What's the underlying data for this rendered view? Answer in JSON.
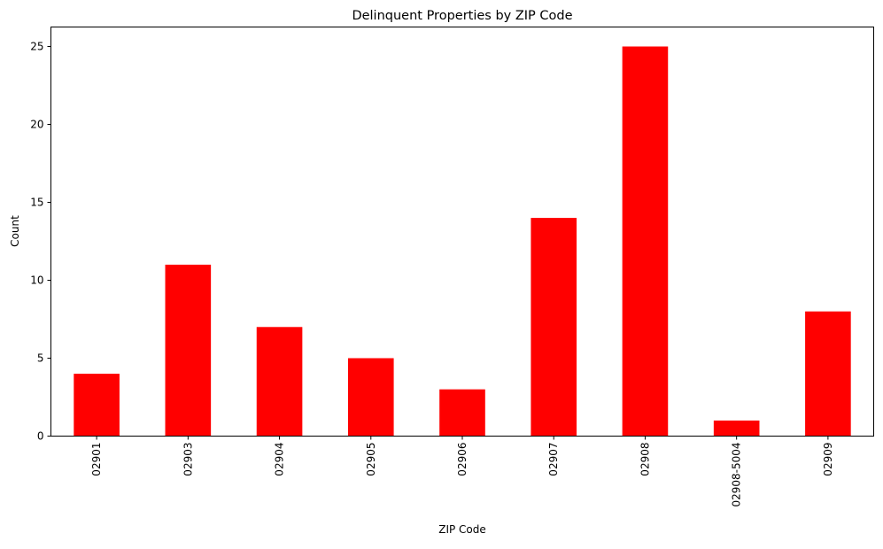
{
  "chart_data": {
    "type": "bar",
    "title": "Delinquent Properties by ZIP Code",
    "xlabel": "ZIP Code",
    "ylabel": "Count",
    "categories": [
      "02901",
      "02903",
      "02904",
      "02905",
      "02906",
      "02907",
      "02908",
      "02908-5004",
      "02909"
    ],
    "values": [
      4,
      11,
      7,
      5,
      3,
      14,
      25,
      1,
      8
    ],
    "ylim": [
      0,
      26.25
    ],
    "yticks": [
      0,
      5,
      10,
      15,
      20,
      25
    ],
    "grid": false,
    "legend": "none",
    "bar_color": "#ff0000",
    "x_tick_rotation": 90
  }
}
